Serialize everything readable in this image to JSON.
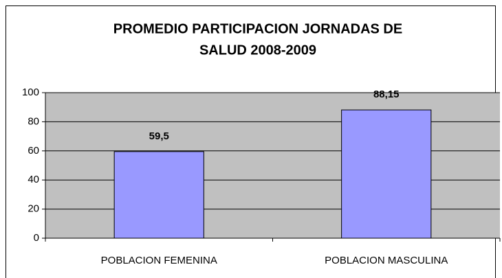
{
  "chart_data": {
    "type": "bar",
    "title": [
      "PROMEDIO PARTICIPACION JORNADAS DE",
      "SALUD 2008-2009"
    ],
    "categories": [
      "POBLACION FEMENINA",
      "POBLACION MASCULINA"
    ],
    "values": [
      59.5,
      88.15
    ],
    "value_labels": [
      "59,5",
      "88,15"
    ],
    "color": "#9999ff",
    "plot_background": "#c0c0c0",
    "ylim": [
      0,
      100
    ],
    "yticks": [
      0,
      20,
      40,
      60,
      80,
      100
    ],
    "grid": true
  }
}
